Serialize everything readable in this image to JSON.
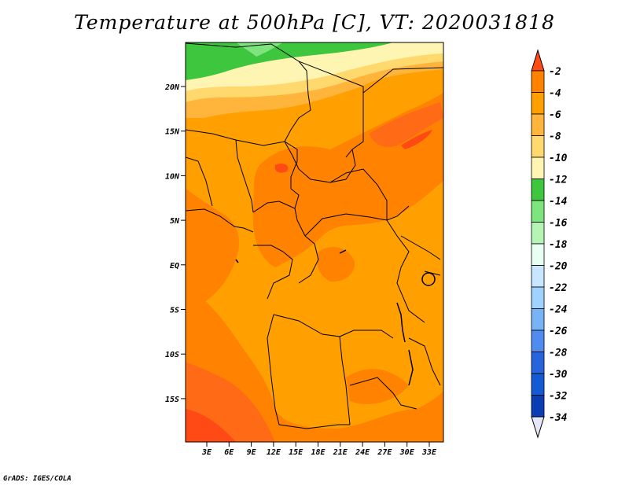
{
  "title": "Temperature at 500hPa [C], VT: 2020031818",
  "credit": "GrADS: IGES/COLA",
  "map": {
    "projection": "latlon",
    "lat_labels": [
      "20N",
      "15N",
      "10N",
      "5N",
      "EQ",
      "5S",
      "10S",
      "15S"
    ],
    "lon_labels": [
      "3E",
      "6E",
      "9E",
      "12E",
      "15E",
      "18E",
      "21E",
      "24E",
      "27E",
      "30E",
      "33E"
    ],
    "field": "temperature_500hPa",
    "units": "C"
  },
  "colorbar": {
    "labels": [
      "-2",
      "-4",
      "-6",
      "-8",
      "-10",
      "-12",
      "-14",
      "-16",
      "-18",
      "-20",
      "-22",
      "-24",
      "-26",
      "-28",
      "-30",
      "-32",
      "-34"
    ],
    "colors": [
      "#ff6a16",
      "#ff8200",
      "#ffa000",
      "#ffb43c",
      "#ffd86e",
      "#fff5b2",
      "#3ec63e",
      "#7ee47e",
      "#b4f5b4",
      "#e8fff4",
      "#c8e6ff",
      "#a0d2ff",
      "#78b4f5",
      "#508cf0",
      "#2864dc",
      "#145ad2",
      "#0a3cb4",
      "#00197a",
      "#e6e6fa"
    ],
    "top_color": "#ff4a16",
    "bottom_color": "#e6e6fa"
  }
}
